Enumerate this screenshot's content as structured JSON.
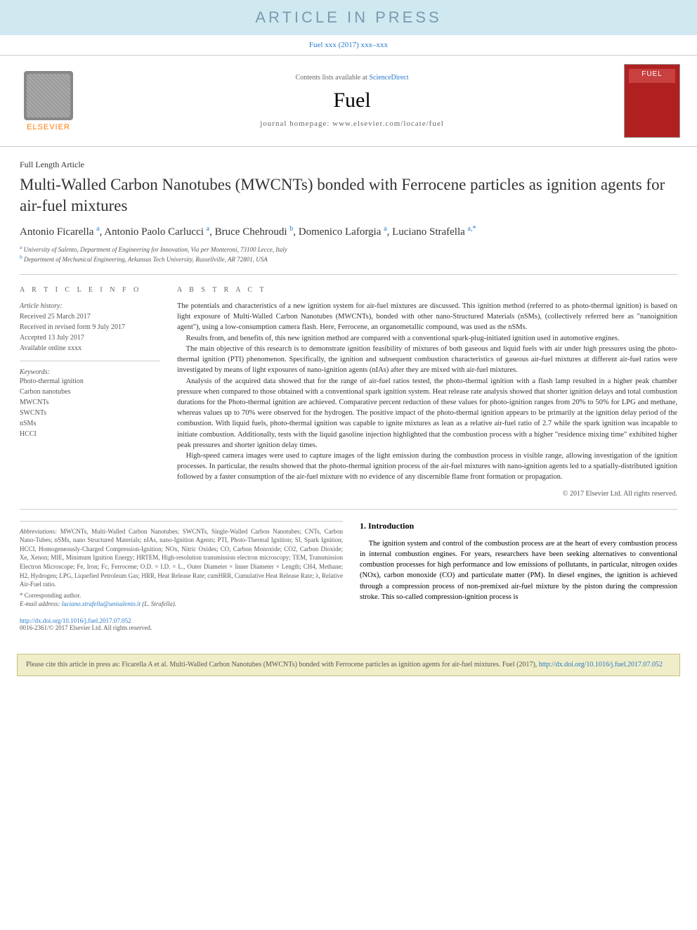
{
  "banner": {
    "text": "ARTICLE IN PRESS",
    "bg": "#d0e8f0",
    "fg": "#7a9bb0"
  },
  "subref": "Fuel xxx (2017) xxx–xxx",
  "header": {
    "elsevier": "ELSEVIER",
    "contents_prefix": "Contents lists available at ",
    "contents_link": "ScienceDirect",
    "journal": "Fuel",
    "homepage": "journal homepage: www.elsevier.com/locate/fuel"
  },
  "article_type": "Full Length Article",
  "title": "Multi-Walled Carbon Nanotubes (MWCNTs) bonded with Ferrocene particles as ignition agents for air-fuel mixtures",
  "authors_html": "Antonio Ficarella <sup>a</sup>, Antonio Paolo Carlucci <sup>a</sup>, Bruce Chehroudi <sup>b</sup>, Domenico Laforgia <sup>a</sup>, Luciano Strafella <sup>a,*</sup>",
  "affiliations": [
    {
      "sup": "a",
      "text": "University of Salento, Department of Engineering for Innovation, Via per Monteroni, 73100 Lecce, Italy"
    },
    {
      "sup": "b",
      "text": "Department of Mechanical Engineering, Arkansas Tech University, Russellville, AR 72801, USA"
    }
  ],
  "info": {
    "head": "A R T I C L E   I N F O",
    "history_label": "Article history:",
    "history": [
      "Received 25 March 2017",
      "Received in revised form 9 July 2017",
      "Accepted 13 July 2017",
      "Available online xxxx"
    ],
    "keywords_label": "Keywords:",
    "keywords": [
      "Photo-thermal ignition",
      "Carbon nanotubes",
      "MWCNTs",
      "SWCNTs",
      "nSMs",
      "HCCI"
    ]
  },
  "abstract": {
    "head": "A B S T R A C T",
    "paras": [
      "The potentials and characteristics of a new ignition system for air-fuel mixtures are discussed. This ignition method (referred to as photo-thermal ignition) is based on light exposure of Multi-Walled Carbon Nanotubes (MWCNTs), bonded with other nano-Structured Materials (nSMs), (collectively referred here as \"nanoignition agent\"), using a low-consumption camera flash. Here, Ferrocene, an organometallic compound, was used as the nSMs.",
      "Results from, and benefits of, this new ignition method are compared with a conventional spark-plug-initiated ignition used in automotive engines.",
      "The main objective of this research is to demonstrate ignition feasibility of mixtures of both gaseous and liquid fuels with air under high pressures using the photo-thermal ignition (PTI) phenomenon. Specifically, the ignition and subsequent combustion characteristics of gaseous air-fuel mixtures at different air-fuel ratios were investigated by means of light exposures of nano-ignition agents (nIAs) after they are mixed with air-fuel mixtures.",
      "Analysis of the acquired data showed that for the range of air-fuel ratios tested, the photo-thermal ignition with a flash lamp resulted in a higher peak chamber pressure when compared to those obtained with a conventional spark ignition system. Heat release rate analysis showed that shorter ignition delays and total combustion durations for the Photo-thermal ignition are achieved. Comparative percent reduction of these values for photo-ignition ranges from 20% to 50% for LPG and methane, whereas values up to 70% were observed for the hydrogen. The positive impact of the photo-thermal ignition appears to be primarily at the ignition delay period of the combustion. With liquid fuels, photo-thermal ignition was capable to ignite mixtures as lean as a relative air-fuel ratio of 2.7 while the spark ignition was incapable to initiate combustion. Additionally, tests with the liquid gasoline injection highlighted that the combustion process with a higher \"residence mixing time\" exhibited higher peak pressures and shorter ignition delay times.",
      "High-speed camera images were used to capture images of the light emission during the combustion process in visible range, allowing investigation of the ignition processes. In particular, the results showed that the photo-thermal ignition process of the air-fuel mixtures with nano-ignition agents led to a spatially-distributed ignition followed by a faster consumption of the air-fuel mixture with no evidence of any discernible flame front formation or propagation."
    ],
    "copyright": "© 2017 Elsevier Ltd. All rights reserved."
  },
  "abbrev": {
    "label": "Abbreviations:",
    "text": " MWCNTs, Multi-Walled Carbon Nanotubes; SWCNTs, Single-Walled Carbon Nanotubes; CNTs, Carbon Nano-Tubes; nSMs, nano Structured Materials; nIAs, nano-Ignition Agents; PTI, Photo-Thermal Ignition; SI, Spark Ignition; HCCI, Homogeneously-Charged Compression-Ignition; NOx, Nitric Oxides; CO, Carbon Monoxide; CO2, Carbon Dioxide; Xe, Xenon; MIE, Minimum Ignition Energy; HRTEM, High-resolution transmission electron microscopy; TEM, Transmission Electron Microscope; Fe, Iron; Fc, Ferrocene; O.D. × I.D. × L., Outer Diameter × Inner Diameter × Length; CH4, Methane; H2, Hydrogen; LPG, Liquefied Petroleum Gas; HRR, Heat Release Rate; cumHRR, Cumulative Heat Release Rate; λ, Relative Air-Fuel ratio."
  },
  "corresp": "* Corresponding author.",
  "email_label": "E-mail address: ",
  "email": "luciano.strafella@unisalento.it",
  "email_suffix": " (L. Strafella).",
  "intro": {
    "head": "1. Introduction",
    "text": "The ignition system and control of the combustion process are at the heart of every combustion process in internal combustion engines. For years, researchers have been seeking alternatives to conventional combustion processes for high performance and low emissions of pollutants, in particular, nitrogen oxides (NOx), carbon monoxide (CO) and particulate matter (PM). In diesel engines, the ignition is achieved through a compression process of non-premixed air-fuel mixture by the piston during the compression stroke. This so-called compression-ignition process is"
  },
  "doi": {
    "link": "http://dx.doi.org/10.1016/j.fuel.2017.07.052",
    "issn": "0016-2361/© 2017 Elsevier Ltd. All rights reserved."
  },
  "cite": {
    "text": "Please cite this article in press as: Ficarella A et al. Multi-Walled Carbon Nanotubes (MWCNTs) bonded with Ferrocene particles as ignition agents for air-fuel mixtures. Fuel (2017), ",
    "link": "http://dx.doi.org/10.1016/j.fuel.2017.07.052"
  }
}
